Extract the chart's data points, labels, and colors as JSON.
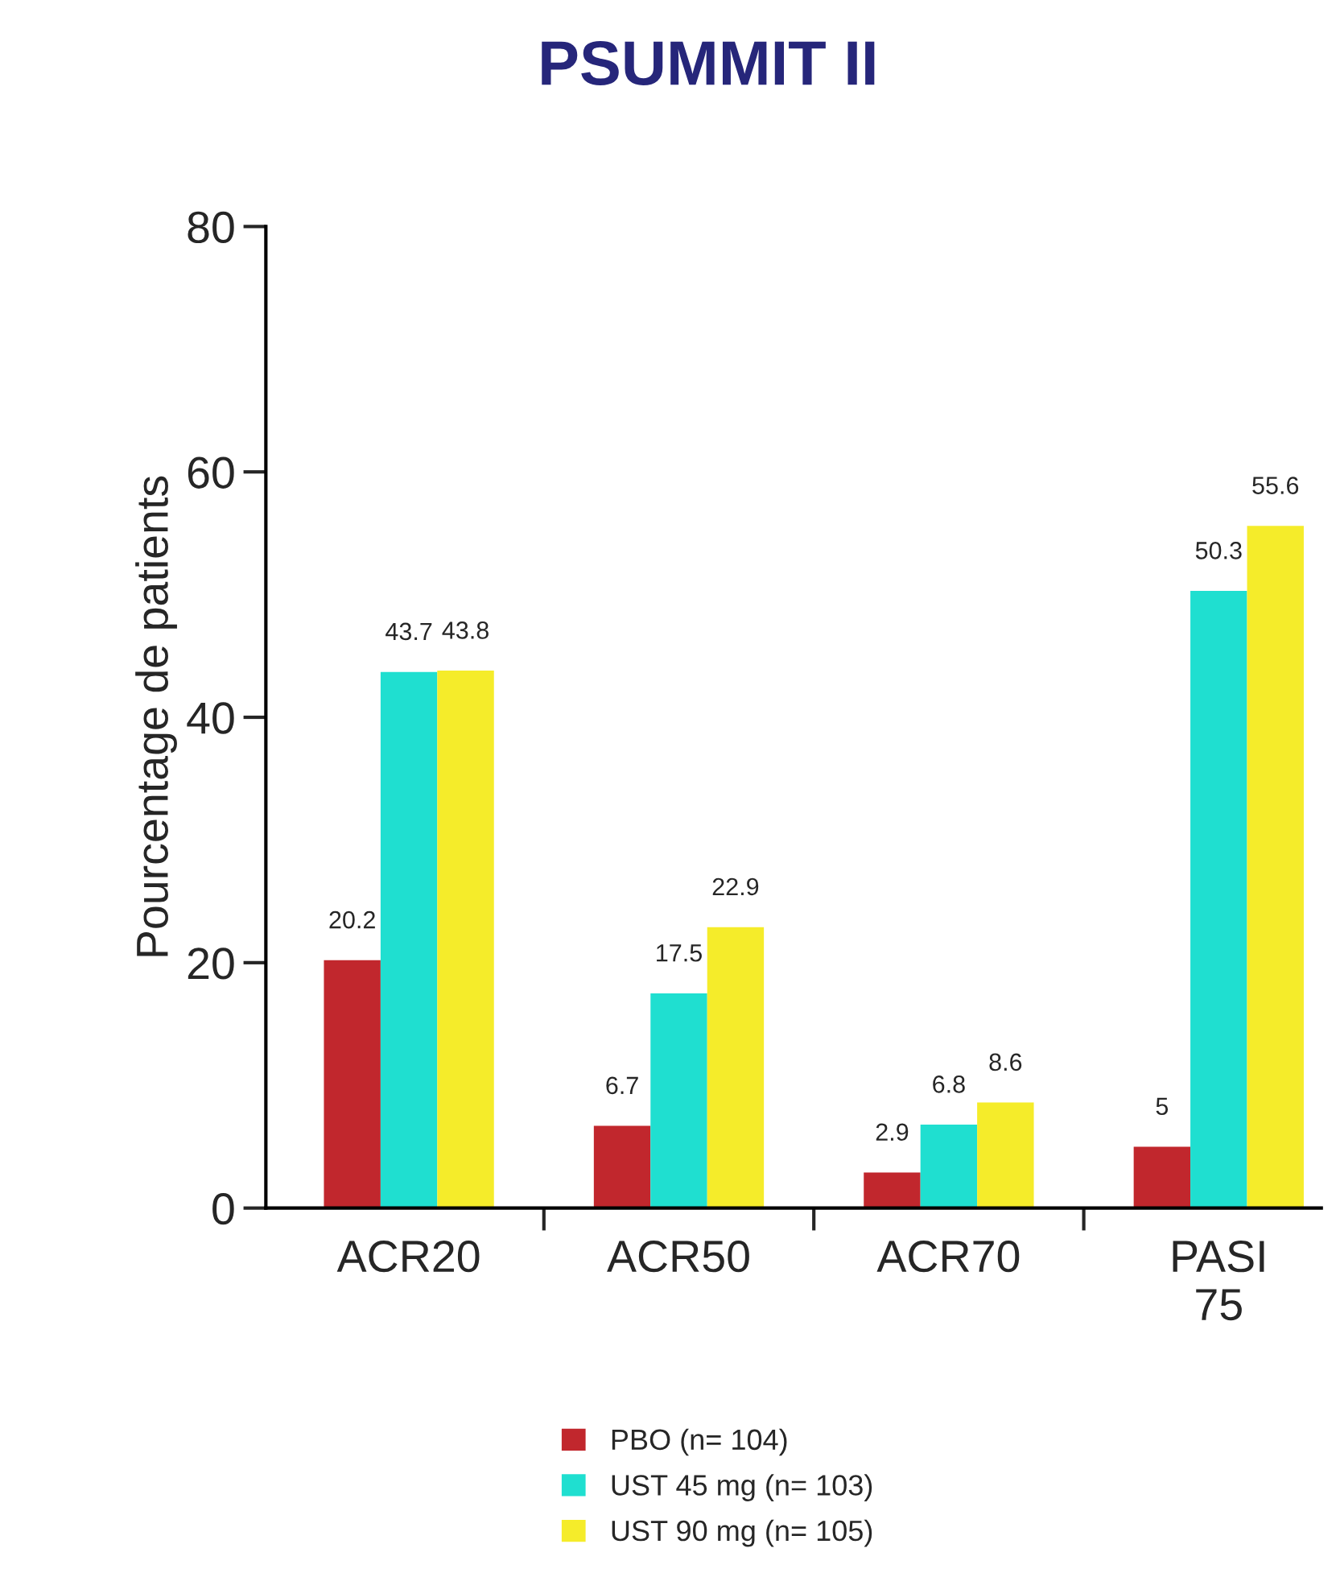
{
  "chart_data": {
    "type": "bar",
    "title": "PSUMMIT II",
    "ylabel": "Pourcentage de patients",
    "categories": [
      "ACR20",
      "ACR50",
      "ACR70",
      "PASI\n75"
    ],
    "series": [
      {
        "name": "PBO (n= 104)",
        "color": "#c1272d",
        "values": [
          20.2,
          6.7,
          2.9,
          5
        ]
      },
      {
        "name": "UST 45 mg (n= 103)",
        "color": "#1fdfd0",
        "values": [
          43.7,
          17.5,
          6.8,
          50.3
        ]
      },
      {
        "name": "UST 90 mg (n= 105)",
        "color": "#f5ec2a",
        "values": [
          43.8,
          22.9,
          8.6,
          55.6
        ]
      }
    ],
    "ylim": [
      0,
      80
    ],
    "yticks": [
      0,
      20,
      40,
      60,
      80
    ],
    "grid": false,
    "legend": "bottom",
    "data_labels": true
  }
}
